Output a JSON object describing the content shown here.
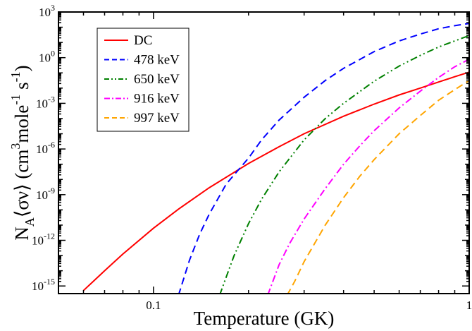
{
  "chart_data": {
    "type": "line",
    "title": "",
    "xlabel": "Temperature (GK)",
    "ylabel": "N_A⟨σv⟩ (cm^3 mole^-1 s^-1)",
    "ylabel_parts": {
      "main": "N",
      "sub": "A",
      "bracket": "⟨σν⟩ (cm",
      "sup1": "3",
      "mid": "mole",
      "sup2": "-1",
      "end1": " s",
      "sup3": "-1",
      "end2": ")"
    },
    "x_scale": "log",
    "y_scale": "log",
    "xlim": [
      0.05,
      1.0
    ],
    "ylim_log10": [
      -15.5,
      3
    ],
    "x_tick_labels": [
      {
        "value": 0.1,
        "label": "0.1"
      },
      {
        "value": 1,
        "label": "1"
      }
    ],
    "y_tick_labels": [
      {
        "exp": 3,
        "base": "10",
        "sup": "3"
      },
      {
        "exp": 0,
        "base": "10",
        "sup": "0"
      },
      {
        "exp": -3,
        "base": "10",
        "sup": "-3"
      },
      {
        "exp": -6,
        "base": "10",
        "sup": "-6"
      },
      {
        "exp": -9,
        "base": "10",
        "sup": "-9"
      },
      {
        "exp": -12,
        "base": "10",
        "sup": "-12"
      },
      {
        "exp": -15,
        "base": "10",
        "sup": "-15"
      }
    ],
    "legend_position": "top-left",
    "series": [
      {
        "name": "DC",
        "color": "#ff0000",
        "dash": "solid",
        "x": [
          0.06,
          0.07,
          0.08,
          0.1,
          0.12,
          0.15,
          0.2,
          0.25,
          0.3,
          0.4,
          0.5,
          0.6,
          0.7,
          0.8,
          0.9,
          1.0
        ],
        "log10_y": [
          -15.3,
          -14.0,
          -12.9,
          -11.2,
          -9.95,
          -8.55,
          -6.95,
          -5.85,
          -5.0,
          -3.85,
          -3.05,
          -2.45,
          -2.0,
          -1.6,
          -1.25,
          -0.95
        ]
      },
      {
        "name": "478 keV",
        "color": "#0000ff",
        "dash": "dashed",
        "x": [
          0.12,
          0.13,
          0.14,
          0.15,
          0.17,
          0.2,
          0.22,
          0.25,
          0.3,
          0.35,
          0.4,
          0.5,
          0.6,
          0.7,
          0.8,
          0.9,
          1.0
        ],
        "log10_y": [
          -15.6,
          -13.3,
          -11.6,
          -10.3,
          -8.3,
          -6.6,
          -5.4,
          -4.1,
          -2.6,
          -1.5,
          -0.7,
          0.4,
          1.1,
          1.55,
          1.9,
          2.1,
          2.25
        ]
      },
      {
        "name": "650 keV",
        "color": "#008000",
        "dash": "dash-dot-dot",
        "x": [
          0.162,
          0.17,
          0.18,
          0.2,
          0.22,
          0.25,
          0.3,
          0.35,
          0.4,
          0.5,
          0.6,
          0.7,
          0.8,
          0.9,
          1.0
        ],
        "log10_y": [
          -15.6,
          -14.4,
          -13.0,
          -10.9,
          -9.3,
          -7.5,
          -5.4,
          -4.0,
          -3.0,
          -1.55,
          -0.55,
          0.15,
          0.7,
          1.1,
          1.45
        ]
      },
      {
        "name": "916 keV",
        "color": "#ff00ff",
        "dash": "dash-dot",
        "x": [
          0.23,
          0.25,
          0.27,
          0.3,
          0.35,
          0.4,
          0.45,
          0.5,
          0.6,
          0.7,
          0.8,
          0.9,
          1.0
        ],
        "log10_y": [
          -15.6,
          -13.6,
          -12.2,
          -10.6,
          -8.6,
          -7.0,
          -5.8,
          -4.8,
          -3.3,
          -2.2,
          -1.3,
          -0.6,
          -0.1
        ]
      },
      {
        "name": "997 keV",
        "color": "#ffa500",
        "dash": "dashed",
        "x": [
          0.265,
          0.28,
          0.3,
          0.35,
          0.4,
          0.45,
          0.5,
          0.6,
          0.7,
          0.8,
          0.9,
          1.0
        ],
        "log10_y": [
          -15.6,
          -14.7,
          -13.4,
          -11.0,
          -9.2,
          -7.8,
          -6.7,
          -5.0,
          -3.8,
          -2.8,
          -2.1,
          -1.5
        ]
      }
    ]
  }
}
